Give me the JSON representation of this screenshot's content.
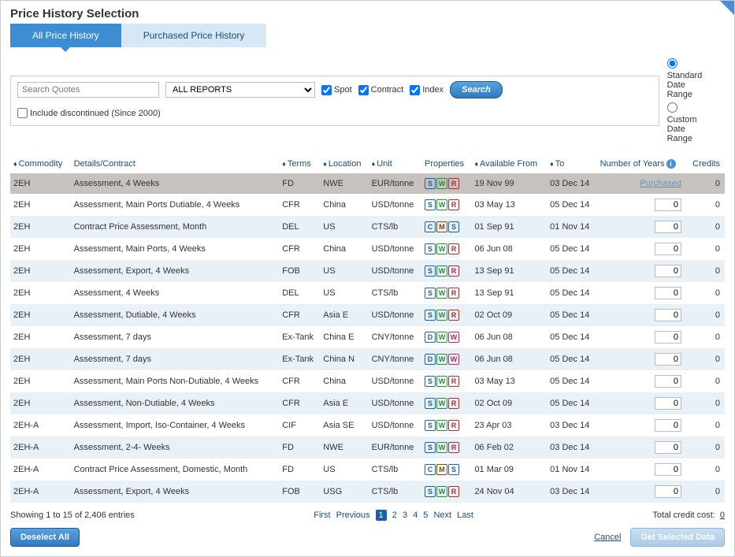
{
  "dialog": {
    "title": "Price History Selection"
  },
  "tabs": {
    "all": "All Price History",
    "purchased": "Purchased Price History"
  },
  "filter": {
    "search_placeholder": "Search Quotes",
    "report_select": "ALL REPORTS",
    "spot_label": "Spot",
    "contract_label": "Contract",
    "index_label": "Index",
    "search_btn": "Search",
    "include_discontinued": "Include discontinued (Since 2000)",
    "standard_range": "Standard Date Range",
    "custom_range": "Custom Date Range"
  },
  "columns": {
    "commodity": "Commodity",
    "details": "Details/Contract",
    "terms": "Terms",
    "location": "Location",
    "unit": "Unit",
    "properties": "Properties",
    "available_from": "Available From",
    "to": "To",
    "number_years": "Number of Years",
    "credits": "Credits"
  },
  "rows": [
    {
      "commodity": "2EH",
      "details": "Assessment, 4 Weeks",
      "terms": "FD",
      "location": "NWE",
      "unit": "EUR/tonne",
      "badges": [
        "S",
        "W",
        "R"
      ],
      "from": "19 Nov 99",
      "to": "03 Dec 14",
      "years": "Purchased",
      "credits": "0",
      "selected": true
    },
    {
      "commodity": "2EH",
      "details": "Assessment, Main Ports Dutiable, 4 Weeks",
      "terms": "CFR",
      "location": "China",
      "unit": "USD/tonne",
      "badges": [
        "S",
        "W",
        "R"
      ],
      "from": "03 May 13",
      "to": "05 Dec 14",
      "years": "0",
      "credits": "0"
    },
    {
      "commodity": "2EH",
      "details": "Contract Price Assessment, Month",
      "terms": "DEL",
      "location": "US",
      "unit": "CTS/lb",
      "badges": [
        "C",
        "M",
        "S"
      ],
      "from": "01 Sep 91",
      "to": "01 Nov 14",
      "years": "0",
      "credits": "0"
    },
    {
      "commodity": "2EH",
      "details": "Assessment, Main Ports, 4 Weeks",
      "terms": "CFR",
      "location": "China",
      "unit": "USD/tonne",
      "badges": [
        "S",
        "W",
        "R"
      ],
      "from": "06 Jun 08",
      "to": "05 Dec 14",
      "years": "0",
      "credits": "0"
    },
    {
      "commodity": "2EH",
      "details": "Assessment, Export, 4 Weeks",
      "terms": "FOB",
      "location": "US",
      "unit": "USD/tonne",
      "badges": [
        "S",
        "W",
        "R"
      ],
      "from": "13 Sep 91",
      "to": "05 Dec 14",
      "years": "0",
      "credits": "0"
    },
    {
      "commodity": "2EH",
      "details": "Assessment, 4 Weeks",
      "terms": "DEL",
      "location": "US",
      "unit": "CTS/lb",
      "badges": [
        "S",
        "W",
        "R"
      ],
      "from": "13 Sep 91",
      "to": "05 Dec 14",
      "years": "0",
      "credits": "0"
    },
    {
      "commodity": "2EH",
      "details": "Assessment, Dutiable, 4 Weeks",
      "terms": "CFR",
      "location": "Asia E",
      "unit": "USD/tonne",
      "badges": [
        "S",
        "W",
        "R"
      ],
      "from": "02 Oct 09",
      "to": "05 Dec 14",
      "years": "0",
      "credits": "0"
    },
    {
      "commodity": "2EH",
      "details": "Assessment, 7 days",
      "terms": "Ex-Tank",
      "location": "China E",
      "unit": "CNY/tonne",
      "badges": [
        "D",
        "W",
        "Wp"
      ],
      "from": "06 Jun 08",
      "to": "05 Dec 14",
      "years": "0",
      "credits": "0"
    },
    {
      "commodity": "2EH",
      "details": "Assessment, 7 days",
      "terms": "Ex-Tank",
      "location": "China N",
      "unit": "CNY/tonne",
      "badges": [
        "D",
        "W",
        "Wp"
      ],
      "from": "06 Jun 08",
      "to": "05 Dec 14",
      "years": "0",
      "credits": "0"
    },
    {
      "commodity": "2EH",
      "details": "Assessment, Main Ports Non-Dutiable, 4 Weeks",
      "terms": "CFR",
      "location": "China",
      "unit": "USD/tonne",
      "badges": [
        "S",
        "W",
        "R"
      ],
      "from": "03 May 13",
      "to": "05 Dec 14",
      "years": "0",
      "credits": "0"
    },
    {
      "commodity": "2EH",
      "details": "Assessment, Non-Dutiable, 4 Weeks",
      "terms": "CFR",
      "location": "Asia E",
      "unit": "USD/tonne",
      "badges": [
        "S",
        "W",
        "R"
      ],
      "from": "02 Oct 09",
      "to": "05 Dec 14",
      "years": "0",
      "credits": "0"
    },
    {
      "commodity": "2EH-A",
      "details": "Assessment, Import, Iso-Container, 4 Weeks",
      "terms": "CIF",
      "location": "Asia SE",
      "unit": "USD/tonne",
      "badges": [
        "S",
        "W",
        "R"
      ],
      "from": "23 Apr 03",
      "to": "03 Dec 14",
      "years": "0",
      "credits": "0"
    },
    {
      "commodity": "2EH-A",
      "details": "Assessment, 2-4- Weeks",
      "terms": "FD",
      "location": "NWE",
      "unit": "EUR/tonne",
      "badges": [
        "S",
        "W",
        "R"
      ],
      "from": "06 Feb 02",
      "to": "03 Dec 14",
      "years": "0",
      "credits": "0"
    },
    {
      "commodity": "2EH-A",
      "details": "Contract Price Assessment, Domestic, Month",
      "terms": "FD",
      "location": "US",
      "unit": "CTS/lb",
      "badges": [
        "C",
        "M",
        "S"
      ],
      "from": "01 Mar 09",
      "to": "01 Nov 14",
      "years": "0",
      "credits": "0"
    },
    {
      "commodity": "2EH-A",
      "details": "Assessment, Export, 4 Weeks",
      "terms": "FOB",
      "location": "USG",
      "unit": "CTS/lb",
      "badges": [
        "S",
        "W",
        "R"
      ],
      "from": "24 Nov 04",
      "to": "03 Dec 14",
      "years": "0",
      "credits": "0"
    }
  ],
  "footer": {
    "showing": "Showing 1 to 15 of 2,406 entries",
    "first": "First",
    "prev": "Previous",
    "p1": "1",
    "p2": "2",
    "p3": "3",
    "p4": "4",
    "p5": "5",
    "next": "Next",
    "last": "Last",
    "total_label": "Total credit cost:",
    "total_value": "0",
    "deselect": "Deselect All",
    "cancel": "Cancel",
    "get_data": "Get Selected Data"
  }
}
